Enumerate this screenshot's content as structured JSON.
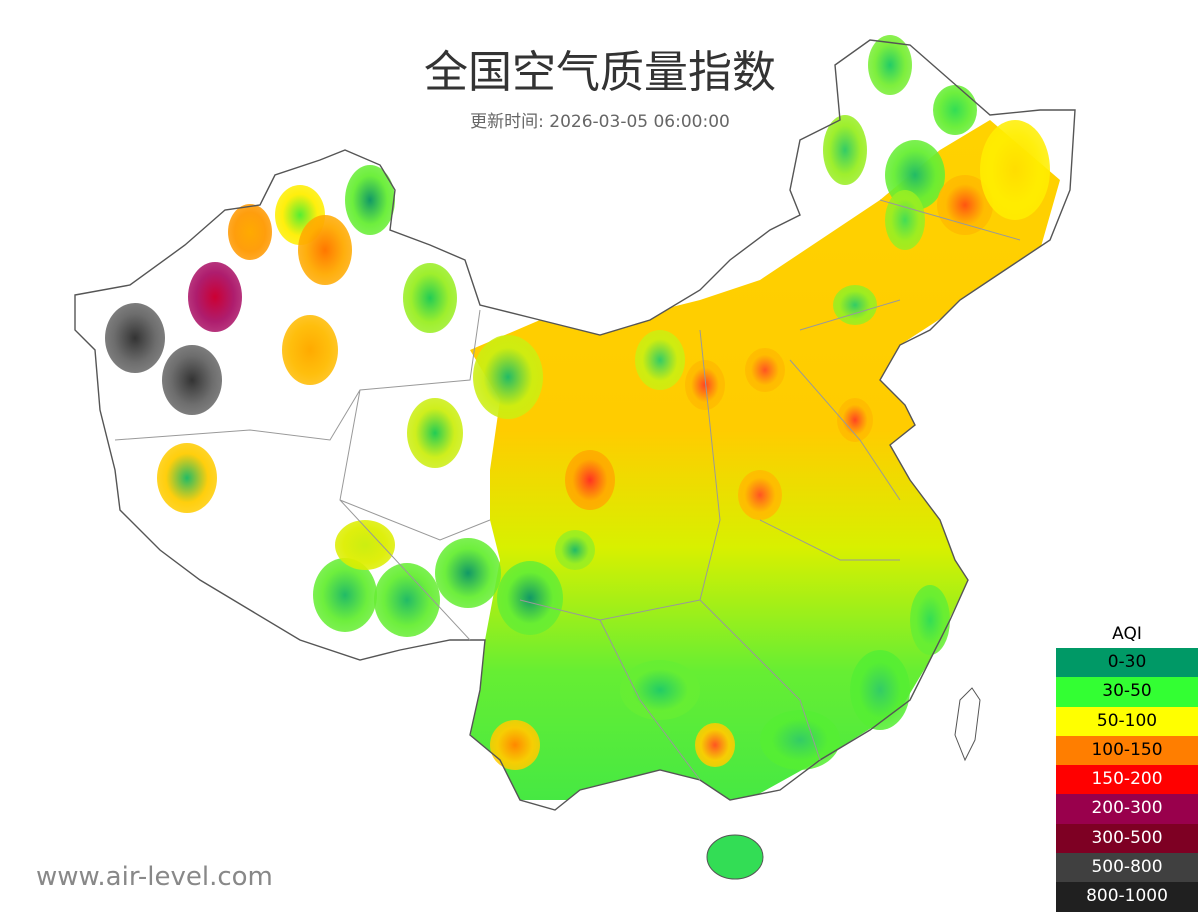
{
  "title": "全国空气质量指数",
  "subtitle": "更新时间: 2026-03-05 06:00:00",
  "legend": {
    "title": "AQI",
    "items": [
      {
        "label": "0-30",
        "color": "#009966",
        "text_color": "#000000"
      },
      {
        "label": "30-50",
        "color": "#33ff33",
        "text_color": "#000000"
      },
      {
        "label": "50-100",
        "color": "#ffff00",
        "text_color": "#000000"
      },
      {
        "label": "100-150",
        "color": "#ff7e00",
        "text_color": "#000000"
      },
      {
        "label": "150-200",
        "color": "#ff0000",
        "text_color": "#ffffff"
      },
      {
        "label": "200-300",
        "color": "#99004c",
        "text_color": "#ffffff"
      },
      {
        "label": "300-500",
        "color": "#7e0023",
        "text_color": "#ffffff"
      },
      {
        "label": "500-800",
        "color": "#404040",
        "text_color": "#ffffff"
      },
      {
        "label": "800-1000",
        "color": "#202020",
        "text_color": "#ffffff"
      }
    ]
  },
  "watermark": "www.air-level.com"
}
